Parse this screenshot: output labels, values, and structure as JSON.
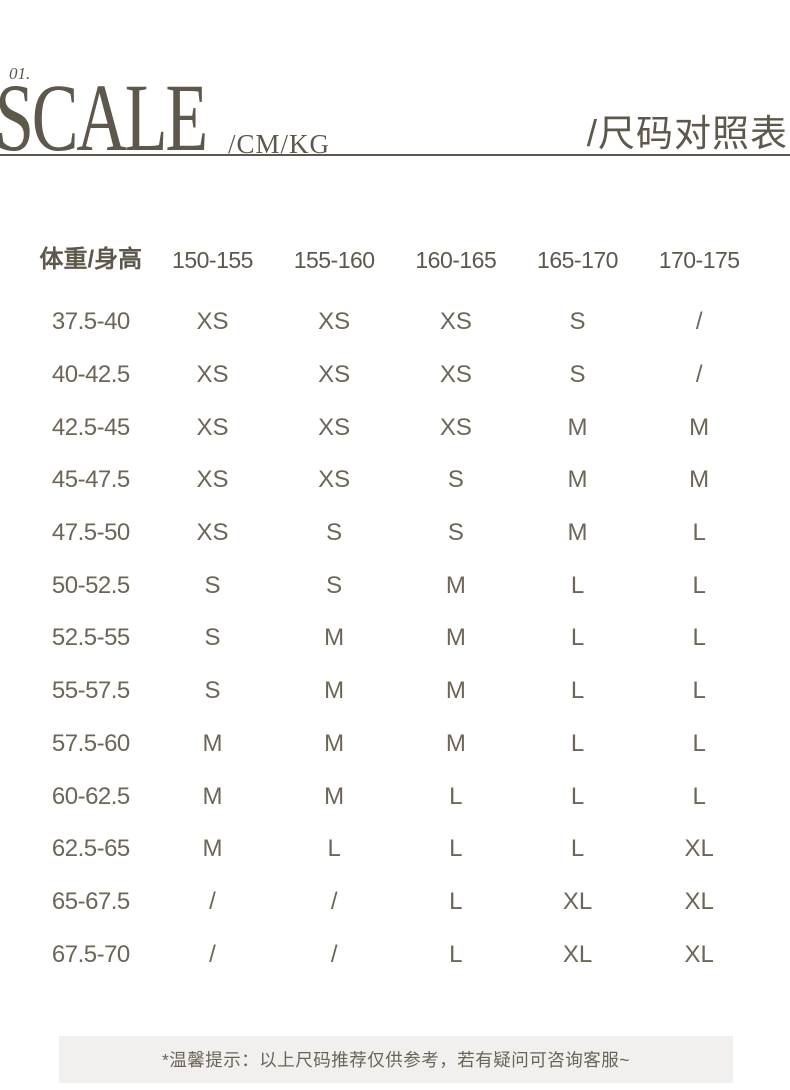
{
  "header": {
    "index": "01.",
    "title": "SCALE",
    "unit": "/CM/KG",
    "title_cn": "/尺码对照表"
  },
  "table": {
    "columns": [
      "体重/身高",
      "150-155",
      "155-160",
      "160-165",
      "165-170",
      "170-175"
    ],
    "rows": [
      {
        "weight": "37.5-40",
        "sizes": [
          "XS",
          "XS",
          "XS",
          "S",
          "/"
        ]
      },
      {
        "weight": "40-42.5",
        "sizes": [
          "XS",
          "XS",
          "XS",
          "S",
          "/"
        ]
      },
      {
        "weight": "42.5-45",
        "sizes": [
          "XS",
          "XS",
          "XS",
          "M",
          "M"
        ]
      },
      {
        "weight": "45-47.5",
        "sizes": [
          "XS",
          "XS",
          "S",
          "M",
          "M"
        ]
      },
      {
        "weight": "47.5-50",
        "sizes": [
          "XS",
          "S",
          "S",
          "M",
          "L"
        ]
      },
      {
        "weight": "50-52.5",
        "sizes": [
          "S",
          "S",
          "M",
          "L",
          "L"
        ]
      },
      {
        "weight": "52.5-55",
        "sizes": [
          "S",
          "M",
          "M",
          "L",
          "L"
        ]
      },
      {
        "weight": "55-57.5",
        "sizes": [
          "S",
          "M",
          "M",
          "L",
          "L"
        ]
      },
      {
        "weight": "57.5-60",
        "sizes": [
          "M",
          "M",
          "M",
          "L",
          "L"
        ]
      },
      {
        "weight": "60-62.5",
        "sizes": [
          "M",
          "M",
          "L",
          "L",
          "L"
        ]
      },
      {
        "weight": "62.5-65",
        "sizes": [
          "M",
          "L",
          "L",
          "L",
          "XL"
        ]
      },
      {
        "weight": "65-67.5",
        "sizes": [
          "/",
          "/",
          "L",
          "XL",
          "XL"
        ]
      },
      {
        "weight": "67.5-70",
        "sizes": [
          "/",
          "/",
          "L",
          "XL",
          "XL"
        ]
      }
    ]
  },
  "footer": {
    "note": "*温馨提示：以上尺码推荐仅供参考，若有疑问可咨询客服~"
  },
  "colors": {
    "header_text": "#5e574b",
    "table_text": "#6d6658",
    "note_bg": "#f1f0ee",
    "note_text": "#6b6355"
  },
  "chart_data": {
    "type": "table",
    "title": "SCALE /CM/KG /尺码对照表",
    "row_header_label": "体重/身高",
    "row_header_unit": "KG",
    "column_unit": "CM",
    "columns": [
      "体重/身高",
      "150-155",
      "155-160",
      "160-165",
      "165-170",
      "170-175"
    ],
    "rows": [
      [
        "37.5-40",
        "XS",
        "XS",
        "XS",
        "S",
        "/"
      ],
      [
        "40-42.5",
        "XS",
        "XS",
        "XS",
        "S",
        "/"
      ],
      [
        "42.5-45",
        "XS",
        "XS",
        "XS",
        "M",
        "M"
      ],
      [
        "45-47.5",
        "XS",
        "XS",
        "S",
        "M",
        "M"
      ],
      [
        "47.5-50",
        "XS",
        "S",
        "S",
        "M",
        "L"
      ],
      [
        "50-52.5",
        "S",
        "S",
        "M",
        "L",
        "L"
      ],
      [
        "52.5-55",
        "S",
        "M",
        "M",
        "L",
        "L"
      ],
      [
        "55-57.5",
        "S",
        "M",
        "M",
        "L",
        "L"
      ],
      [
        "57.5-60",
        "M",
        "M",
        "M",
        "L",
        "L"
      ],
      [
        "60-62.5",
        "M",
        "M",
        "L",
        "L",
        "L"
      ],
      [
        "62.5-65",
        "M",
        "L",
        "L",
        "L",
        "XL"
      ],
      [
        "65-67.5",
        "/",
        "/",
        "L",
        "XL",
        "XL"
      ],
      [
        "67.5-70",
        "/",
        "/",
        "L",
        "XL",
        "XL"
      ]
    ],
    "footnote": "*温馨提示：以上尺码推荐仅供参考，若有疑问可咨询客服~"
  }
}
